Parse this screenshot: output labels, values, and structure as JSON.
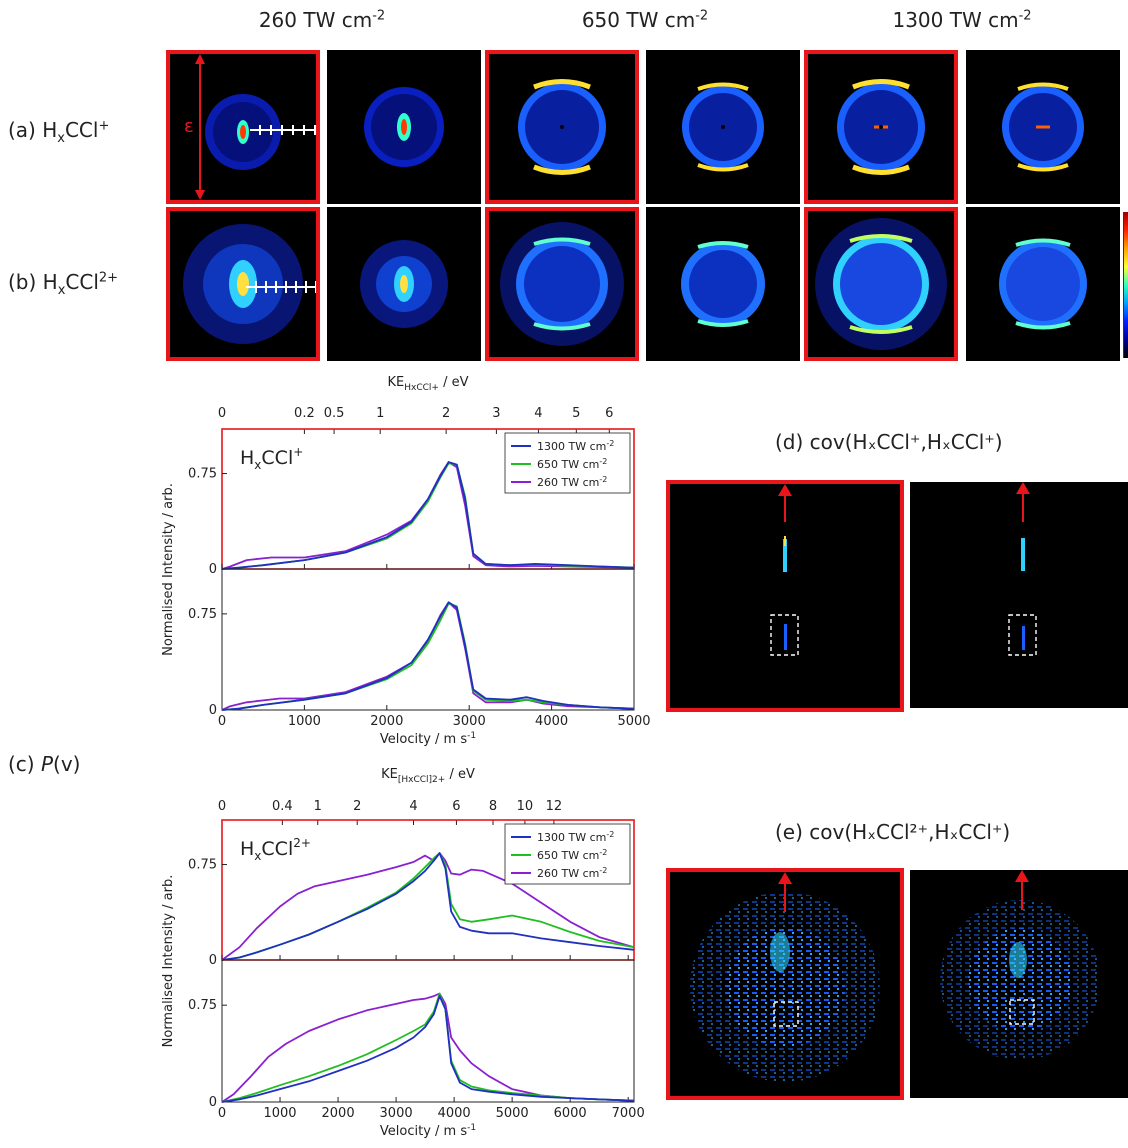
{
  "columns": [
    "260 TW cm",
    "650 TW cm",
    "1300 TW cm"
  ],
  "column_exp": "-2",
  "rows": {
    "a": {
      "prefix": "(a) H",
      "sub": "x",
      "mid": "CCl",
      "sup": "+"
    },
    "b": {
      "prefix": "(b) H",
      "sub": "x",
      "mid": "CCl",
      "sup": "2+"
    }
  },
  "epsilon": "ε",
  "panel_c_label": {
    "prefix": "(c) ",
    "italic": "P",
    "suffix": "(v)"
  },
  "panel_d_label": "(d) cov(HₓCCl⁺,HₓCCl⁺)",
  "panel_e_label": "(e) cov(HₓCCl²⁺,HₓCCl⁺)",
  "chart_data": [
    {
      "type": "line",
      "id": "top",
      "inset_label": {
        "base": "H",
        "sub": "x",
        "mid": "CCl",
        "sup": "+"
      },
      "xlabel": "Velocity / m s",
      "xlabel_exp": "-1",
      "ylabel": "Normalised Intensity / arb.",
      "top_axis_label": "KE",
      "top_axis_sub": "HxCCl+",
      "top_axis_unit": " / eV",
      "top_ticks": [
        {
          "label": "0",
          "v": 0
        },
        {
          "label": "0.2",
          "v": 1000
        },
        {
          "label": "0.5",
          "v": 1360
        },
        {
          "label": "1",
          "v": 1920
        },
        {
          "label": "2",
          "v": 2720
        },
        {
          "label": "3",
          "v": 3330
        },
        {
          "label": "4",
          "v": 3840
        },
        {
          "label": "5",
          "v": 4300
        },
        {
          "label": "6",
          "v": 4700
        }
      ],
      "xlim": [
        0,
        5000
      ],
      "xticks": [
        0,
        1000,
        2000,
        3000,
        4000,
        5000
      ],
      "ylim": [
        0,
        1.1
      ],
      "yticks": [
        {
          "v": 0,
          "label": "0"
        },
        {
          "v": 0.75,
          "label": "0.75"
        }
      ],
      "legend": [
        "1300 TW cm",
        "650 TW cm",
        "260 TW cm"
      ],
      "legend_exp": "-2",
      "colors": {
        "1300": "#2030c0",
        "650": "#1fbf1f",
        "260": "#8a20d0"
      },
      "panels": [
        {
          "series": [
            {
              "name": "1300 TW cm",
              "x": [
                0,
                200,
                500,
                1000,
                1500,
                2000,
                2300,
                2500,
                2650,
                2750,
                2850,
                2950,
                3050,
                3200,
                3500,
                3800,
                4200,
                4600,
                5000
              ],
              "y": [
                0,
                0.01,
                0.03,
                0.07,
                0.13,
                0.25,
                0.37,
                0.55,
                0.73,
                0.84,
                0.82,
                0.55,
                0.12,
                0.04,
                0.03,
                0.04,
                0.03,
                0.02,
                0.01
              ]
            },
            {
              "name": "650 TW cm",
              "x": [
                0,
                200,
                500,
                1000,
                1500,
                2000,
                2300,
                2500,
                2650,
                2750,
                2850,
                2950,
                3050,
                3200,
                3500,
                3800,
                4200,
                4600,
                5000
              ],
              "y": [
                0,
                0.01,
                0.03,
                0.07,
                0.13,
                0.24,
                0.36,
                0.53,
                0.72,
                0.83,
                0.82,
                0.57,
                0.12,
                0.04,
                0.03,
                0.035,
                0.025,
                0.02,
                0.01
              ]
            },
            {
              "name": "260 TW cm",
              "x": [
                0,
                100,
                300,
                600,
                1000,
                1500,
                2000,
                2300,
                2500,
                2650,
                2750,
                2850,
                2950,
                3050,
                3200,
                3500,
                3800,
                4200,
                4600,
                5000
              ],
              "y": [
                0,
                0.02,
                0.07,
                0.09,
                0.09,
                0.14,
                0.27,
                0.38,
                0.55,
                0.74,
                0.84,
                0.8,
                0.5,
                0.1,
                0.03,
                0.02,
                0.025,
                0.02,
                0.015,
                0.01
              ]
            }
          ]
        },
        {
          "series": [
            {
              "name": "1300 TW cm",
              "x": [
                0,
                200,
                500,
                1000,
                1500,
                2000,
                2300,
                2500,
                2650,
                2750,
                2850,
                2950,
                3050,
                3200,
                3500,
                3700,
                3900,
                4200,
                4600,
                5000
              ],
              "y": [
                0,
                0.01,
                0.04,
                0.08,
                0.13,
                0.25,
                0.37,
                0.55,
                0.73,
                0.84,
                0.8,
                0.5,
                0.16,
                0.09,
                0.08,
                0.1,
                0.07,
                0.04,
                0.02,
                0.01
              ]
            },
            {
              "name": "650 TW cm",
              "x": [
                0,
                200,
                500,
                1000,
                1500,
                2000,
                2300,
                2500,
                2650,
                2750,
                2850,
                2950,
                3050,
                3200,
                3500,
                3700,
                3900,
                4200,
                4600,
                5000
              ],
              "y": [
                0,
                0.01,
                0.04,
                0.08,
                0.13,
                0.24,
                0.35,
                0.52,
                0.7,
                0.83,
                0.81,
                0.52,
                0.15,
                0.08,
                0.07,
                0.08,
                0.06,
                0.04,
                0.02,
                0.01
              ]
            },
            {
              "name": "260 TW cm",
              "x": [
                0,
                100,
                300,
                700,
                1000,
                1500,
                2000,
                2300,
                2500,
                2650,
                2750,
                2850,
                2950,
                3050,
                3200,
                3500,
                3700,
                3900,
                4200,
                4600,
                5000
              ],
              "y": [
                0,
                0.03,
                0.06,
                0.09,
                0.09,
                0.14,
                0.26,
                0.37,
                0.54,
                0.74,
                0.84,
                0.78,
                0.48,
                0.13,
                0.06,
                0.06,
                0.08,
                0.05,
                0.03,
                0.02,
                0.01
              ]
            }
          ]
        }
      ]
    },
    {
      "type": "line",
      "id": "bottom",
      "inset_label": {
        "base": "H",
        "sub": "x",
        "mid": "CCl",
        "sup": "2+"
      },
      "xlabel": "Velocity / m s",
      "xlabel_exp": "-1",
      "ylabel": "Normalised Intensity / arb.",
      "top_axis_label": "KE",
      "top_axis_sub": "[HxCCl]2+",
      "top_axis_unit": " / eV",
      "top_ticks": [
        {
          "label": "0",
          "v": 0
        },
        {
          "label": "0.4",
          "v": 1040
        },
        {
          "label": "1",
          "v": 1650
        },
        {
          "label": "2",
          "v": 2330
        },
        {
          "label": "4",
          "v": 3300
        },
        {
          "label": "6",
          "v": 4040
        },
        {
          "label": "8",
          "v": 4670
        },
        {
          "label": "10",
          "v": 5220
        },
        {
          "label": "12",
          "v": 5720
        }
      ],
      "xlim": [
        0,
        7100
      ],
      "xticks": [
        0,
        1000,
        2000,
        3000,
        4000,
        5000,
        6000,
        7000
      ],
      "ylim": [
        0,
        1.1
      ],
      "yticks": [
        {
          "v": 0,
          "label": "0"
        },
        {
          "v": 0.75,
          "label": "0.75"
        }
      ],
      "legend": [
        "1300 TW cm",
        "650 TW cm",
        "260 TW cm"
      ],
      "legend_exp": "-2",
      "colors": {
        "1300": "#2030c0",
        "650": "#1fbf1f",
        "260": "#8a20d0"
      },
      "panels": [
        {
          "series": [
            {
              "name": "1300 TW cm",
              "x": [
                0,
                300,
                600,
                1000,
                1500,
                2000,
                2500,
                3000,
                3300,
                3500,
                3650,
                3750,
                3850,
                3950,
                4100,
                4300,
                4600,
                5000,
                5500,
                6000,
                6500,
                7100
              ],
              "y": [
                0,
                0.02,
                0.06,
                0.12,
                0.2,
                0.3,
                0.4,
                0.52,
                0.62,
                0.7,
                0.78,
                0.84,
                0.72,
                0.38,
                0.26,
                0.23,
                0.21,
                0.21,
                0.17,
                0.14,
                0.11,
                0.08
              ]
            },
            {
              "name": "650 TW cm",
              "x": [
                0,
                300,
                600,
                1000,
                1500,
                2000,
                2500,
                3000,
                3300,
                3500,
                3650,
                3750,
                3850,
                3950,
                4100,
                4300,
                4600,
                5000,
                5500,
                6000,
                6500,
                7100
              ],
              "y": [
                0,
                0.02,
                0.06,
                0.12,
                0.2,
                0.3,
                0.41,
                0.53,
                0.64,
                0.73,
                0.8,
                0.84,
                0.75,
                0.44,
                0.32,
                0.3,
                0.32,
                0.35,
                0.3,
                0.22,
                0.15,
                0.1
              ]
            },
            {
              "name": "260 TW cm",
              "x": [
                0,
                300,
                600,
                1000,
                1300,
                1600,
                2000,
                2500,
                3000,
                3300,
                3500,
                3650,
                3750,
                3850,
                3950,
                4100,
                4300,
                4500,
                5000,
                5500,
                6000,
                6500,
                7100
              ],
              "y": [
                0,
                0.1,
                0.25,
                0.42,
                0.52,
                0.58,
                0.62,
                0.67,
                0.73,
                0.77,
                0.82,
                0.78,
                0.84,
                0.78,
                0.68,
                0.67,
                0.71,
                0.7,
                0.6,
                0.45,
                0.3,
                0.18,
                0.1
              ]
            }
          ]
        },
        {
          "series": [
            {
              "name": "1300 TW cm",
              "x": [
                0,
                300,
                600,
                1000,
                1500,
                2000,
                2500,
                3000,
                3300,
                3500,
                3650,
                3750,
                3850,
                3950,
                4100,
                4300,
                4600,
                5000,
                5500,
                6000,
                6500,
                7100
              ],
              "y": [
                0,
                0.02,
                0.05,
                0.1,
                0.16,
                0.24,
                0.32,
                0.42,
                0.5,
                0.58,
                0.68,
                0.82,
                0.72,
                0.3,
                0.15,
                0.1,
                0.08,
                0.06,
                0.04,
                0.03,
                0.02,
                0.01
              ]
            },
            {
              "name": "650 TW cm",
              "x": [
                0,
                300,
                600,
                1000,
                1500,
                2000,
                2500,
                3000,
                3300,
                3500,
                3650,
                3750,
                3850,
                3950,
                4100,
                4300,
                4600,
                5000,
                5500,
                6000,
                6500,
                7100
              ],
              "y": [
                0,
                0.03,
                0.07,
                0.13,
                0.2,
                0.28,
                0.37,
                0.48,
                0.55,
                0.6,
                0.7,
                0.84,
                0.72,
                0.32,
                0.17,
                0.12,
                0.09,
                0.07,
                0.05,
                0.03,
                0.02,
                0.01
              ]
            },
            {
              "name": "260 TW cm",
              "x": [
                0,
                200,
                500,
                800,
                1100,
                1500,
                2000,
                2500,
                3000,
                3300,
                3500,
                3650,
                3750,
                3850,
                3950,
                4100,
                4300,
                4600,
                5000,
                5500,
                6000,
                6500,
                7100
              ],
              "y": [
                0,
                0.06,
                0.2,
                0.35,
                0.45,
                0.55,
                0.64,
                0.71,
                0.76,
                0.79,
                0.8,
                0.82,
                0.84,
                0.76,
                0.5,
                0.4,
                0.3,
                0.2,
                0.1,
                0.05,
                0.03,
                0.02,
                0.01
              ]
            }
          ]
        }
      ]
    }
  ]
}
